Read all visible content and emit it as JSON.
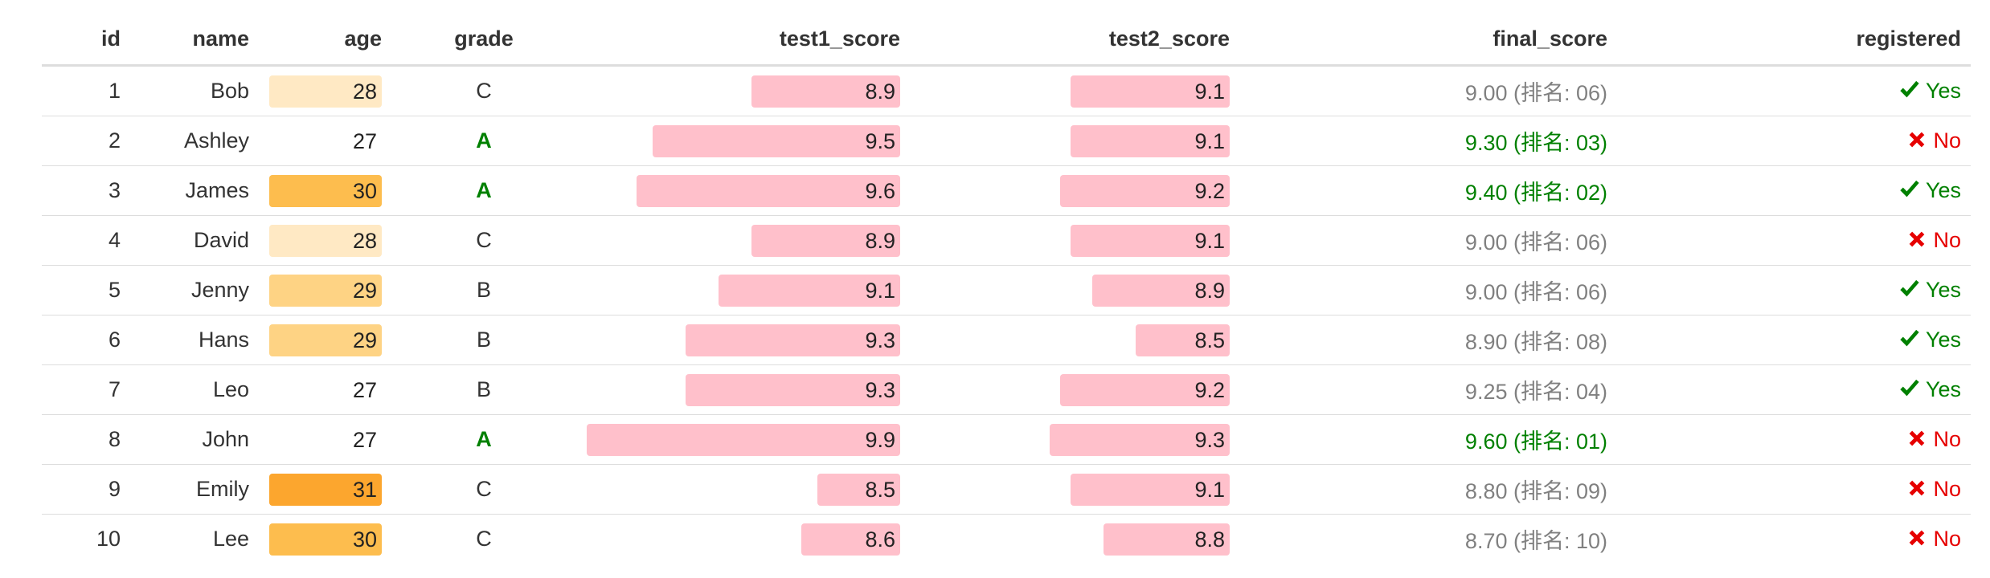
{
  "table": {
    "columns": [
      "id",
      "name",
      "age",
      "grade",
      "test1_score",
      "test2_score",
      "final_score",
      "registered"
    ],
    "rows": [
      {
        "id": "1",
        "name": "Bob",
        "age": "28",
        "age_color": "#ffe9c4",
        "grade": "C",
        "test1": "8.9",
        "test2": "9.1",
        "final": "9.00 (排名: 06)",
        "final_top": false,
        "registered": "Yes",
        "reg": true
      },
      {
        "id": "2",
        "name": "Ashley",
        "age": "27",
        "age_color": "",
        "grade": "A",
        "test1": "9.5",
        "test2": "9.1",
        "final": "9.30 (排名: 03)",
        "final_top": true,
        "registered": "No",
        "reg": false
      },
      {
        "id": "3",
        "name": "James",
        "age": "30",
        "age_color": "#fdbd4e",
        "grade": "A",
        "test1": "9.6",
        "test2": "9.2",
        "final": "9.40 (排名: 02)",
        "final_top": true,
        "registered": "Yes",
        "reg": true
      },
      {
        "id": "4",
        "name": "David",
        "age": "28",
        "age_color": "#ffe9c4",
        "grade": "C",
        "test1": "8.9",
        "test2": "9.1",
        "final": "9.00 (排名: 06)",
        "final_top": false,
        "registered": "No",
        "reg": false
      },
      {
        "id": "5",
        "name": "Jenny",
        "age": "29",
        "age_color": "#fed384",
        "grade": "B",
        "test1": "9.1",
        "test2": "8.9",
        "final": "9.00 (排名: 06)",
        "final_top": false,
        "registered": "Yes",
        "reg": true
      },
      {
        "id": "6",
        "name": "Hans",
        "age": "29",
        "age_color": "#fed384",
        "grade": "B",
        "test1": "9.3",
        "test2": "8.5",
        "final": "8.90 (排名: 08)",
        "final_top": false,
        "registered": "Yes",
        "reg": true
      },
      {
        "id": "7",
        "name": "Leo",
        "age": "27",
        "age_color": "",
        "grade": "B",
        "test1": "9.3",
        "test2": "9.2",
        "final": "9.25 (排名: 04)",
        "final_top": false,
        "registered": "Yes",
        "reg": true
      },
      {
        "id": "8",
        "name": "John",
        "age": "27",
        "age_color": "",
        "grade": "A",
        "test1": "9.9",
        "test2": "9.3",
        "final": "9.60 (排名: 01)",
        "final_top": true,
        "registered": "No",
        "reg": false
      },
      {
        "id": "9",
        "name": "Emily",
        "age": "31",
        "age_color": "#fca62e",
        "grade": "C",
        "test1": "8.5",
        "test2": "9.1",
        "final": "8.80 (排名: 09)",
        "final_top": false,
        "registered": "No",
        "reg": false
      },
      {
        "id": "10",
        "name": "Lee",
        "age": "30",
        "age_color": "#fdbd4e",
        "grade": "C",
        "test1": "8.6",
        "test2": "8.8",
        "final": "8.70 (排名: 10)",
        "final_top": false,
        "registered": "No",
        "reg": false
      }
    ]
  },
  "colors": {
    "bar": "#ffc0cb",
    "good": "#008000",
    "bad": "#e60000",
    "muted": "#808080"
  },
  "icons": {
    "yes": "check-icon",
    "no": "cross-icon"
  }
}
